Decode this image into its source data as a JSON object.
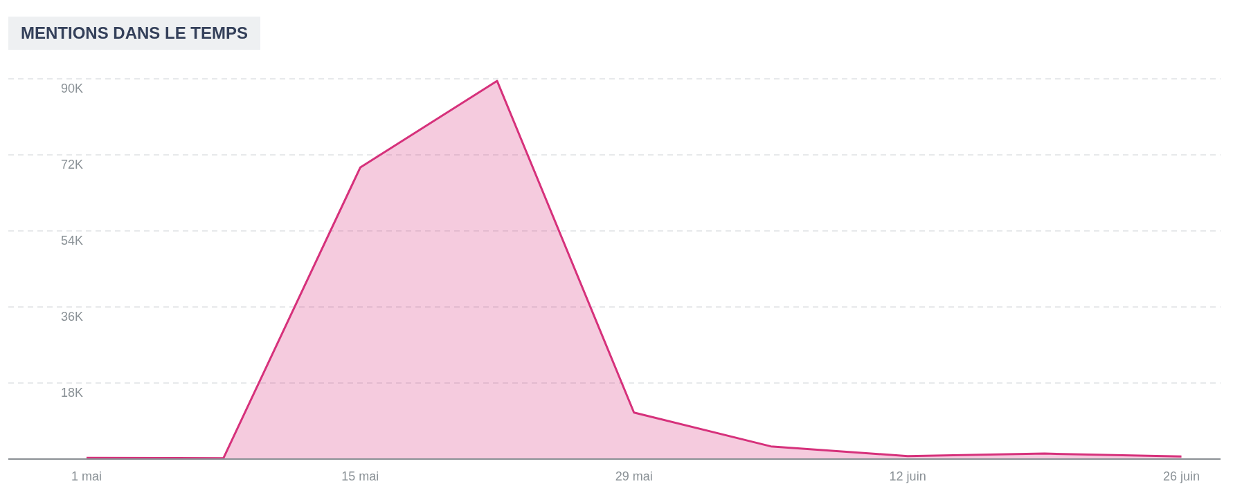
{
  "chart_data": {
    "type": "area",
    "title": "MENTIONS DANS LE TEMPS",
    "x": [
      "--05-01",
      "--05-08",
      "--05-15",
      "--05-22",
      "--05-29",
      "--06-05",
      "--06-12",
      "--06-19",
      "--06-26"
    ],
    "series": [
      {
        "color": "#d6317b",
        "values": [
          300,
          200,
          69000,
          89500,
          11000,
          3000,
          700,
          1300,
          600
        ]
      }
    ],
    "xlim": [
      "--04-27",
      "--06-28"
    ],
    "xticks": [
      {
        "value": "--05-01",
        "label": "1 mai"
      },
      {
        "value": "--05-15",
        "label": "15 mai"
      },
      {
        "value": "--05-29",
        "label": "29 mai"
      },
      {
        "value": "--06-12",
        "label": "12 juin"
      },
      {
        "value": "--06-26",
        "label": "26 juin"
      }
    ],
    "ylim": [
      0,
      90000
    ],
    "yticks": [
      {
        "value": 0,
        "label": null
      },
      {
        "value": 18000,
        "label": "18K"
      },
      {
        "value": 36000,
        "label": "36K"
      },
      {
        "value": 54000,
        "label": "54K"
      },
      {
        "value": 72000,
        "label": "72K"
      },
      {
        "value": 90000,
        "label": "90K"
      }
    ],
    "grid": "y"
  }
}
